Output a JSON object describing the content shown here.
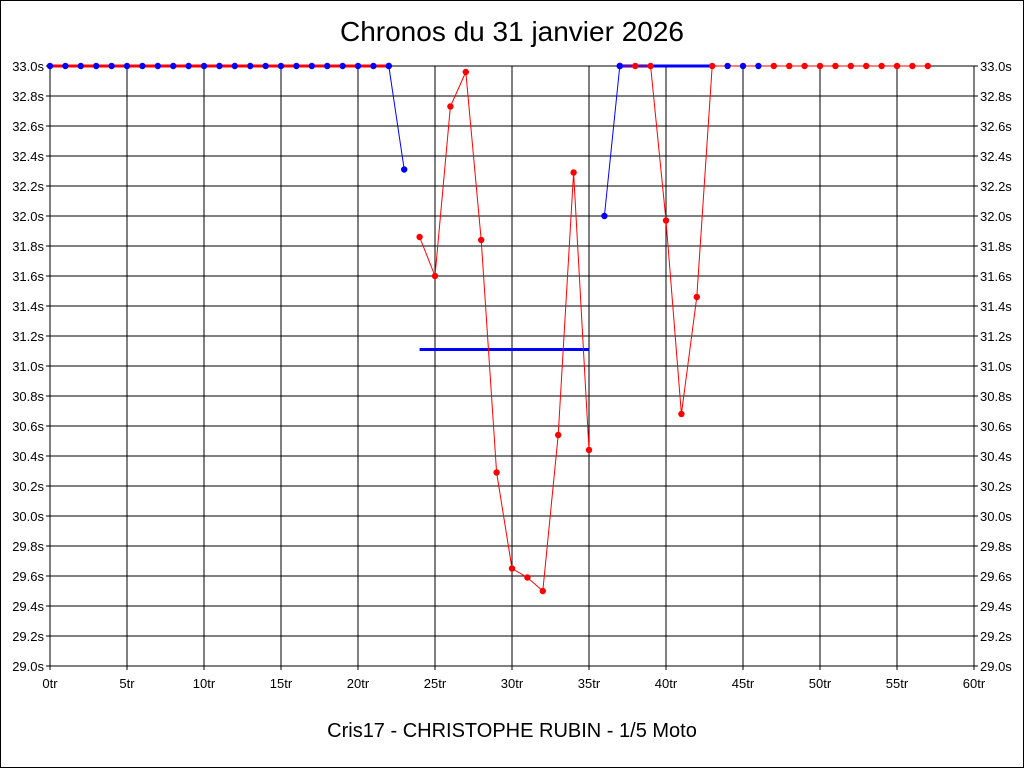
{
  "chart_data": {
    "type": "line",
    "title": "Chronos du 31 janvier 2026",
    "footer": "Cris17 - CHRISTOPHE RUBIN - 1/5 Moto",
    "xlim": [
      0,
      60
    ],
    "ylim": [
      29.0,
      33.0
    ],
    "x_ticks": [
      0,
      5,
      10,
      15,
      20,
      25,
      30,
      35,
      40,
      45,
      50,
      55,
      60
    ],
    "x_tick_labels": [
      "0tr",
      "5tr",
      "10tr",
      "15tr",
      "20tr",
      "25tr",
      "30tr",
      "35tr",
      "40tr",
      "45tr",
      "50tr",
      "55tr",
      "60tr"
    ],
    "y_ticks": [
      29.0,
      29.2,
      29.4,
      29.6,
      29.8,
      30.0,
      30.2,
      30.4,
      30.6,
      30.8,
      31.0,
      31.2,
      31.4,
      31.6,
      31.8,
      32.0,
      32.2,
      32.4,
      32.6,
      32.8,
      33.0
    ],
    "y_tick_labels": [
      "29.0s",
      "29.2s",
      "29.4s",
      "29.6s",
      "29.8s",
      "30.0s",
      "30.2s",
      "30.4s",
      "30.6s",
      "30.8s",
      "31.0s",
      "31.2s",
      "31.4s",
      "31.6s",
      "31.8s",
      "32.0s",
      "32.2s",
      "32.4s",
      "32.6s",
      "32.8s",
      "33.0s"
    ],
    "grid": true,
    "colors": {
      "red": "#ff0000",
      "blue": "#0000ff"
    },
    "series": [
      {
        "color": "red",
        "x": [
          0,
          1,
          2,
          3,
          4,
          5,
          6,
          7,
          8,
          9,
          10,
          11,
          12,
          13,
          14,
          15,
          16,
          17,
          18,
          19,
          20,
          21,
          22
        ],
        "y": [
          33.0,
          33.0,
          33.0,
          33.0,
          33.0,
          33.0,
          33.0,
          33.0,
          33.0,
          33.0,
          33.0,
          33.0,
          33.0,
          33.0,
          33.0,
          33.0,
          33.0,
          33.0,
          33.0,
          33.0,
          33.0,
          33.0,
          33.0
        ]
      },
      {
        "color": "blue",
        "x": [
          22,
          23
        ],
        "y": [
          33.0,
          32.31
        ]
      },
      {
        "color": "red",
        "x": [
          24,
          25,
          26,
          27,
          28,
          29,
          30,
          31,
          32,
          33,
          34,
          35
        ],
        "y": [
          31.86,
          31.6,
          32.73,
          32.96,
          31.84,
          30.29,
          29.65,
          29.59,
          29.5,
          30.54,
          32.29,
          30.44
        ]
      },
      {
        "color": "blue",
        "x": [
          36,
          37
        ],
        "y": [
          32.0,
          33.0
        ]
      },
      {
        "color": "red",
        "x": [
          37,
          38,
          39,
          40,
          41,
          42,
          43,
          44,
          45,
          46,
          47,
          48,
          49,
          50,
          51,
          52,
          53,
          54,
          55,
          56,
          57
        ],
        "y": [
          33.0,
          33.0,
          33.0,
          31.97,
          30.68,
          31.46,
          33.0,
          33.0,
          33.0,
          33.0,
          33.0,
          33.0,
          33.0,
          33.0,
          33.0,
          33.0,
          33.0,
          33.0,
          33.0,
          33.0,
          33.0
        ]
      }
    ],
    "blue_markers_x": [
      0,
      1,
      2,
      3,
      4,
      5,
      6,
      7,
      8,
      9,
      10,
      11,
      12,
      13,
      14,
      15,
      16,
      17,
      18,
      19,
      20,
      21,
      22,
      23,
      36,
      37,
      44,
      45,
      46
    ],
    "reference_lines": [
      {
        "color": "blue",
        "x": [
          0,
          9
        ],
        "y": 33.0
      },
      {
        "color": "blue",
        "x": [
          21,
          22
        ],
        "y": 33.0
      },
      {
        "color": "blue",
        "x": [
          24,
          35
        ],
        "y": 31.11
      },
      {
        "color": "blue",
        "x": [
          37,
          43
        ],
        "y": 33.0
      }
    ]
  }
}
